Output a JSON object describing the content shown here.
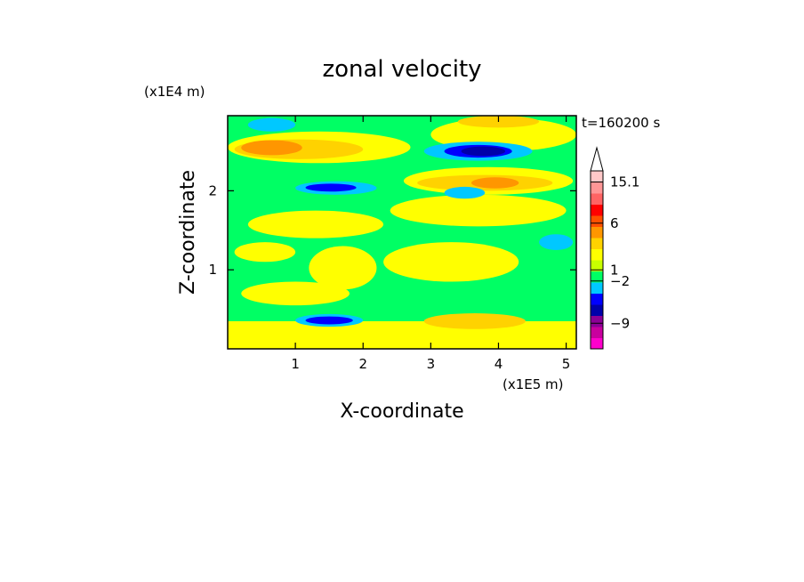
{
  "chart_data": {
    "type": "heatmap",
    "title": "zonal velocity",
    "xlabel": "X-coordinate",
    "ylabel": "Z-coordinate",
    "x_scale_label": "(x1E5 m)",
    "y_scale_label": "(x1E4 m)",
    "time_label": "t=160200 s",
    "xlim": [
      0,
      5.15
    ],
    "ylim": [
      0,
      2.95
    ],
    "x_ticks": [
      1,
      2,
      3,
      4,
      5
    ],
    "y_ticks": [
      1,
      2
    ],
    "colorbar": {
      "labels": [
        {
          "value": 15.1,
          "text": "15.1"
        },
        {
          "value": 6,
          "text": "6"
        },
        {
          "value": 1,
          "text": "1"
        },
        {
          "value": -2,
          "text": "−2"
        },
        {
          "value": -9,
          "text": "−9"
        }
      ],
      "colors": [
        "#ff00cc",
        "#c8009e",
        "#8c0096",
        "#0000aa",
        "#0000ff",
        "#00c8ff",
        "#00ff64",
        "#c8ff00",
        "#ffff00",
        "#ffd200",
        "#ff9600",
        "#ff5000",
        "#ff0000",
        "#ff6464",
        "#ff9696",
        "#ffc8c8"
      ]
    },
    "background_level_color": "#00ff64",
    "regions": [
      {
        "color": "#ffff00",
        "shape": "band",
        "x": [
          0,
          5.15
        ],
        "z": [
          0.0,
          0.35
        ]
      },
      {
        "color": "#ffff00",
        "shape": "ellipse",
        "x": [
          0.2,
          1.8
        ],
        "z": [
          0.55,
          0.85
        ]
      },
      {
        "color": "#ffff00",
        "shape": "ellipse",
        "x": [
          2.3,
          4.3
        ],
        "z": [
          0.85,
          1.35
        ]
      },
      {
        "color": "#ffff00",
        "shape": "ellipse",
        "x": [
          0.3,
          2.3
        ],
        "z": [
          1.4,
          1.75
        ]
      },
      {
        "color": "#ffff00",
        "shape": "ellipse",
        "x": [
          2.4,
          5.0
        ],
        "z": [
          1.55,
          1.95
        ]
      },
      {
        "color": "#ffff00",
        "shape": "ellipse",
        "x": [
          2.6,
          5.1
        ],
        "z": [
          1.95,
          2.3
        ]
      },
      {
        "color": "#ffff00",
        "shape": "ellipse",
        "x": [
          0.0,
          2.7
        ],
        "z": [
          2.35,
          2.75
        ]
      },
      {
        "color": "#ffff00",
        "shape": "ellipse",
        "x": [
          3.0,
          5.15
        ],
        "z": [
          2.5,
          2.92
        ]
      },
      {
        "color": "#ffd200",
        "shape": "ellipse",
        "x": [
          0.1,
          2.0
        ],
        "z": [
          2.4,
          2.65
        ]
      },
      {
        "color": "#ffd200",
        "shape": "ellipse",
        "x": [
          2.8,
          4.8
        ],
        "z": [
          2.0,
          2.2
        ]
      },
      {
        "color": "#ffd200",
        "shape": "ellipse",
        "x": [
          3.4,
          4.6
        ],
        "z": [
          2.8,
          2.95
        ]
      },
      {
        "color": "#ffd200",
        "shape": "ellipse",
        "x": [
          2.9,
          4.4
        ],
        "z": [
          0.25,
          0.45
        ]
      },
      {
        "color": "#ff9600",
        "shape": "ellipse",
        "x": [
          0.2,
          1.1
        ],
        "z": [
          2.45,
          2.64
        ]
      },
      {
        "color": "#ff9600",
        "shape": "ellipse",
        "x": [
          3.6,
          4.3
        ],
        "z": [
          2.03,
          2.17
        ]
      },
      {
        "color": "#00c8ff",
        "shape": "ellipse",
        "x": [
          1.0,
          2.2
        ],
        "z": [
          1.95,
          2.12
        ]
      },
      {
        "color": "#00c8ff",
        "shape": "ellipse",
        "x": [
          2.9,
          4.5
        ],
        "z": [
          2.38,
          2.62
        ]
      },
      {
        "color": "#00c8ff",
        "shape": "ellipse",
        "x": [
          1.0,
          2.0
        ],
        "z": [
          0.28,
          0.44
        ]
      },
      {
        "color": "#00c8ff",
        "shape": "ellipse",
        "x": [
          0.3,
          1.0
        ],
        "z": [
          2.75,
          2.92
        ]
      },
      {
        "color": "#00c8ff",
        "shape": "ellipse",
        "x": [
          4.6,
          5.1
        ],
        "z": [
          1.25,
          1.45
        ]
      },
      {
        "color": "#00c8ff",
        "shape": "ellipse",
        "x": [
          3.2,
          3.8
        ],
        "z": [
          1.9,
          2.05
        ]
      },
      {
        "color": "#0000ff",
        "shape": "ellipse",
        "x": [
          1.15,
          1.9
        ],
        "z": [
          1.99,
          2.09
        ]
      },
      {
        "color": "#0000ff",
        "shape": "ellipse",
        "x": [
          3.2,
          4.2
        ],
        "z": [
          2.42,
          2.58
        ]
      },
      {
        "color": "#0000ff",
        "shape": "ellipse",
        "x": [
          1.15,
          1.85
        ],
        "z": [
          0.31,
          0.41
        ]
      },
      {
        "color": "#0000aa",
        "shape": "ellipse",
        "x": [
          3.45,
          4.1
        ],
        "z": [
          2.44,
          2.56
        ]
      },
      {
        "color": "#ffff00",
        "shape": "ellipse",
        "x": [
          1.2,
          2.2
        ],
        "z": [
          0.75,
          1.3
        ]
      },
      {
        "color": "#ffff00",
        "shape": "ellipse",
        "x": [
          0.1,
          1.0
        ],
        "z": [
          1.1,
          1.35
        ]
      }
    ]
  }
}
